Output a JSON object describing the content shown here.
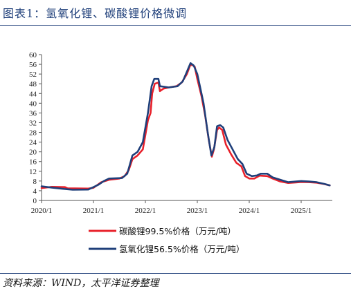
{
  "title": "图表1：氢氧化锂、碳酸锂价格微调",
  "source": "资料来源：WIND，太平洋证券整理",
  "chart_data": {
    "type": "line",
    "ylim": [
      0,
      60
    ],
    "yticks": [
      0,
      4,
      8,
      12,
      16,
      20,
      24,
      28,
      32,
      36,
      40,
      44,
      48,
      52,
      56,
      60
    ],
    "xlim": [
      2020.0,
      2025.6
    ],
    "xticks": [
      {
        "value": 2020.0,
        "label": "2020/1"
      },
      {
        "value": 2021.0,
        "label": "2021/1"
      },
      {
        "value": 2022.0,
        "label": "2022/1"
      },
      {
        "value": 2023.0,
        "label": "2023/1"
      },
      {
        "value": 2024.0,
        "label": "2024/1"
      },
      {
        "value": 2025.0,
        "label": "2025/1"
      }
    ],
    "legend_position": "bottom",
    "series": [
      {
        "name": "碳酸锂99.5%价格（万元/吨）",
        "color": "#e8202a",
        "points": [
          [
            2020.0,
            5.1
          ],
          [
            2020.2,
            5.6
          ],
          [
            2020.45,
            5.5
          ],
          [
            2020.5,
            5.0
          ],
          [
            2020.9,
            4.9
          ],
          [
            2021.0,
            5.2
          ],
          [
            2021.15,
            7.5
          ],
          [
            2021.3,
            8.5
          ],
          [
            2021.5,
            9.0
          ],
          [
            2021.6,
            10.0
          ],
          [
            2021.68,
            12.5
          ],
          [
            2021.75,
            17.0
          ],
          [
            2021.85,
            18.5
          ],
          [
            2021.95,
            21.0
          ],
          [
            2022.0,
            27.0
          ],
          [
            2022.05,
            33.0
          ],
          [
            2022.1,
            36.0
          ],
          [
            2022.13,
            44.0
          ],
          [
            2022.18,
            48.0
          ],
          [
            2022.25,
            48.5
          ],
          [
            2022.28,
            45.0
          ],
          [
            2022.35,
            46.0
          ],
          [
            2022.45,
            46.5
          ],
          [
            2022.6,
            47.0
          ],
          [
            2022.7,
            48.5
          ],
          [
            2022.8,
            52.0
          ],
          [
            2022.86,
            55.5
          ],
          [
            2022.9,
            55.8
          ],
          [
            2022.95,
            55.0
          ],
          [
            2023.0,
            50.0
          ],
          [
            2023.08,
            43.0
          ],
          [
            2023.15,
            35.0
          ],
          [
            2023.22,
            25.0
          ],
          [
            2023.28,
            18.0
          ],
          [
            2023.32,
            21.0
          ],
          [
            2023.38,
            29.0
          ],
          [
            2023.42,
            30.0
          ],
          [
            2023.48,
            29.0
          ],
          [
            2023.55,
            23.0
          ],
          [
            2023.65,
            19.0
          ],
          [
            2023.75,
            15.5
          ],
          [
            2023.85,
            14.0
          ],
          [
            2023.92,
            10.0
          ],
          [
            2024.0,
            9.0
          ],
          [
            2024.1,
            9.0
          ],
          [
            2024.2,
            10.2
          ],
          [
            2024.35,
            10.0
          ],
          [
            2024.45,
            9.0
          ],
          [
            2024.6,
            7.8
          ],
          [
            2024.75,
            7.2
          ],
          [
            2024.9,
            7.4
          ],
          [
            2025.0,
            7.6
          ],
          [
            2025.15,
            7.5
          ],
          [
            2025.3,
            7.3
          ],
          [
            2025.45,
            6.7
          ],
          [
            2025.55,
            6.2
          ]
        ]
      },
      {
        "name": "氢氧化锂56.5%价格（万元/吨）",
        "color": "#1f3f7a",
        "points": [
          [
            2020.0,
            5.8
          ],
          [
            2020.2,
            5.3
          ],
          [
            2020.4,
            4.8
          ],
          [
            2020.6,
            4.4
          ],
          [
            2020.9,
            4.5
          ],
          [
            2021.0,
            5.5
          ],
          [
            2021.1,
            6.5
          ],
          [
            2021.2,
            8.0
          ],
          [
            2021.3,
            9.0
          ],
          [
            2021.55,
            9.2
          ],
          [
            2021.65,
            11.0
          ],
          [
            2021.75,
            18.5
          ],
          [
            2021.85,
            20.0
          ],
          [
            2021.95,
            24.0
          ],
          [
            2022.05,
            36.0
          ],
          [
            2022.12,
            47.0
          ],
          [
            2022.17,
            50.0
          ],
          [
            2022.25,
            50.0
          ],
          [
            2022.28,
            47.0
          ],
          [
            2022.45,
            46.5
          ],
          [
            2022.62,
            47.0
          ],
          [
            2022.72,
            49.0
          ],
          [
            2022.8,
            53.0
          ],
          [
            2022.87,
            56.5
          ],
          [
            2022.93,
            55.5
          ],
          [
            2023.0,
            52.0
          ],
          [
            2023.06,
            46.0
          ],
          [
            2023.12,
            40.0
          ],
          [
            2023.2,
            28.0
          ],
          [
            2023.27,
            18.5
          ],
          [
            2023.33,
            22.0
          ],
          [
            2023.38,
            30.5
          ],
          [
            2023.44,
            31.0
          ],
          [
            2023.5,
            30.0
          ],
          [
            2023.58,
            25.0
          ],
          [
            2023.68,
            21.0
          ],
          [
            2023.78,
            17.0
          ],
          [
            2023.87,
            15.0
          ],
          [
            2023.95,
            11.0
          ],
          [
            2024.05,
            10.0
          ],
          [
            2024.15,
            10.3
          ],
          [
            2024.22,
            11.0
          ],
          [
            2024.35,
            11.0
          ],
          [
            2024.45,
            9.5
          ],
          [
            2024.6,
            8.5
          ],
          [
            2024.75,
            7.5
          ],
          [
            2024.9,
            7.8
          ],
          [
            2025.0,
            8.0
          ],
          [
            2025.15,
            7.8
          ],
          [
            2025.3,
            7.5
          ],
          [
            2025.45,
            6.8
          ],
          [
            2025.55,
            6.2
          ]
        ]
      }
    ]
  }
}
